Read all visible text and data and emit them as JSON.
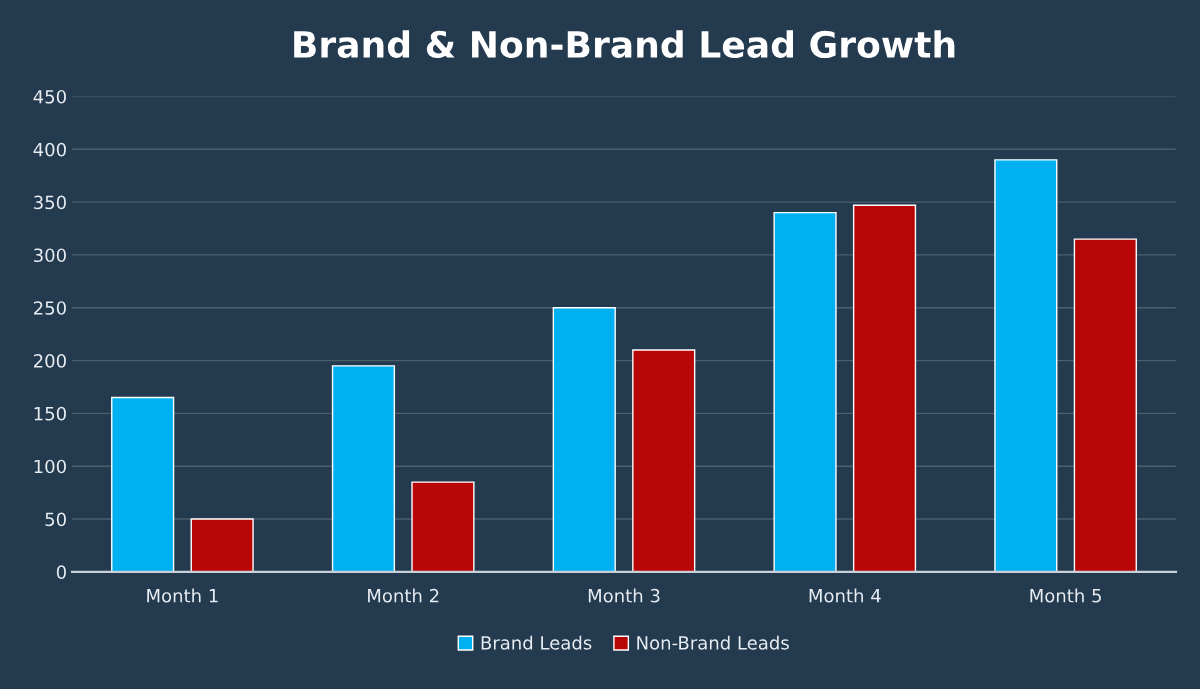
{
  "chart_data": {
    "type": "bar",
    "title": "Brand & Non-Brand Lead Growth",
    "categories": [
      "Month 1",
      "Month 2",
      "Month 3",
      "Month 4",
      "Month 5"
    ],
    "series": [
      {
        "name": "Brand Leads",
        "color": "#00b0f0",
        "values": [
          165,
          195,
          250,
          340,
          390
        ]
      },
      {
        "name": "Non-Brand Leads",
        "color": "#b80606",
        "values": [
          50,
          85,
          210,
          347,
          315
        ]
      }
    ],
    "ylim": [
      0,
      450
    ],
    "yticks": [
      0,
      50,
      100,
      150,
      200,
      250,
      300,
      350,
      400,
      450
    ],
    "grid": "y",
    "legend": "bottom"
  }
}
